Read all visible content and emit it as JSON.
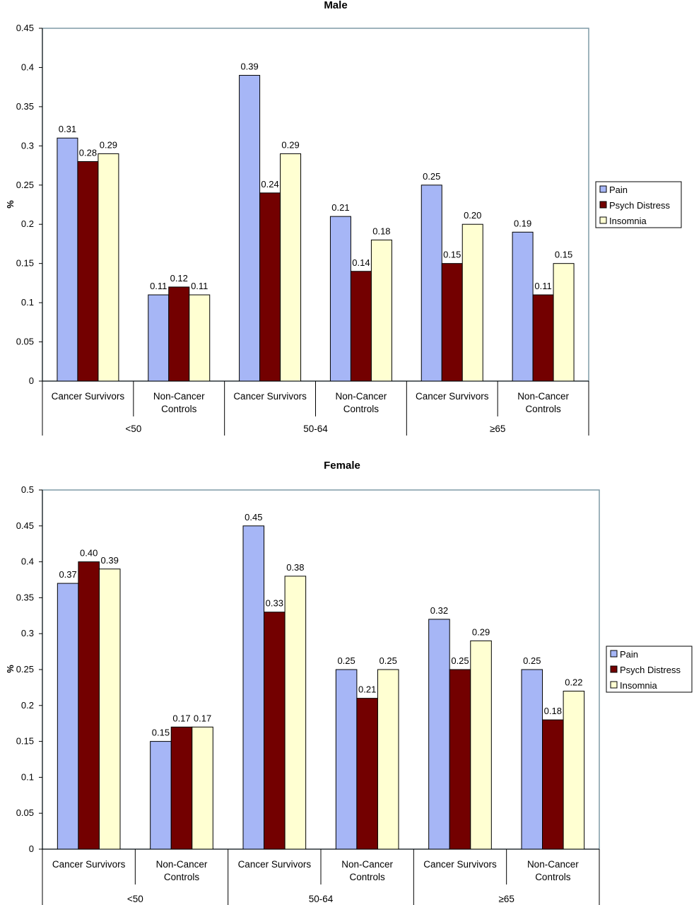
{
  "chart_data": [
    {
      "type": "bar",
      "title": "Male",
      "ylabel": "%",
      "xlabel": "",
      "ylim": [
        0,
        0.45
      ],
      "y_ticks": [
        "0",
        "0.05",
        "0.1",
        "0.15",
        "0.2",
        "0.25",
        "0.3",
        "0.35",
        "0.4",
        "0.45"
      ],
      "groups": [
        "<50",
        "50-64",
        "≥65"
      ],
      "categories": [
        "Cancer Survivors",
        "Non-Cancer Controls",
        "Cancer Survivors",
        "Non-Cancer Controls",
        "Cancer Survivors",
        "Non-Cancer Controls"
      ],
      "category_lines": [
        [
          "Cancer Survivors"
        ],
        [
          "Non-Cancer",
          "Controls"
        ],
        [
          "Cancer Survivors"
        ],
        [
          "Non-Cancer",
          "Controls"
        ],
        [
          "Cancer Survivors"
        ],
        [
          "Non-Cancer",
          "Controls"
        ]
      ],
      "series": [
        {
          "name": "Pain",
          "color": "#a6b6f6",
          "values": [
            0.31,
            0.11,
            0.39,
            0.21,
            0.25,
            0.19
          ],
          "labels": [
            "0.31",
            "0.11",
            "0.39",
            "0.21",
            "0.25",
            "0.19"
          ]
        },
        {
          "name": "Psych Distress",
          "color": "#730000",
          "values": [
            0.28,
            0.12,
            0.24,
            0.14,
            0.15,
            0.11
          ],
          "labels": [
            "0.28",
            "0.12",
            "0.24",
            "0.14",
            "0.15",
            "0.11"
          ]
        },
        {
          "name": "Insomnia",
          "color": "#ffffd2",
          "values": [
            0.29,
            0.11,
            0.29,
            0.18,
            0.2,
            0.15
          ],
          "labels": [
            "0.29",
            "0.11",
            "0.29",
            "0.18",
            "0.20",
            "0.15"
          ]
        }
      ],
      "legend": "right",
      "grid": false
    },
    {
      "type": "bar",
      "title": "Female",
      "ylabel": "%",
      "xlabel": "",
      "ylim": [
        0,
        0.5
      ],
      "y_ticks": [
        "0",
        "0.05",
        "0.1",
        "0.15",
        "0.2",
        "0.25",
        "0.3",
        "0.35",
        "0.4",
        "0.45",
        "0.5"
      ],
      "groups": [
        "<50",
        "50-64",
        "≥65"
      ],
      "categories": [
        "Cancer Survivors",
        "Non-Cancer Controls",
        "Cancer Survivors",
        "Non-Cancer Controls",
        "Cancer Survivors",
        "Non-Cancer Controls"
      ],
      "category_lines": [
        [
          "Cancer Survivors"
        ],
        [
          "Non-Cancer",
          "Controls"
        ],
        [
          "Cancer Survivors"
        ],
        [
          "Non-Cancer",
          "Controls"
        ],
        [
          "Cancer Survivors"
        ],
        [
          "Non-Cancer",
          "Controls"
        ]
      ],
      "series": [
        {
          "name": "Pain",
          "color": "#a6b6f6",
          "values": [
            0.37,
            0.15,
            0.45,
            0.25,
            0.32,
            0.25
          ],
          "labels": [
            "0.37",
            "0.15",
            "0.45",
            "0.25",
            "0.32",
            "0.25"
          ]
        },
        {
          "name": "Psych Distress",
          "color": "#730000",
          "values": [
            0.4,
            0.17,
            0.33,
            0.21,
            0.25,
            0.18
          ],
          "labels": [
            "0.40",
            "0.17",
            "0.33",
            "0.21",
            "0.25",
            "0.18"
          ]
        },
        {
          "name": "Insomnia",
          "color": "#ffffd2",
          "values": [
            0.39,
            0.17,
            0.38,
            0.25,
            0.29,
            0.22
          ],
          "labels": [
            "0.39",
            "0.17",
            "0.38",
            "0.25",
            "0.29",
            "0.22"
          ]
        }
      ],
      "legend": "right",
      "grid": false
    }
  ]
}
